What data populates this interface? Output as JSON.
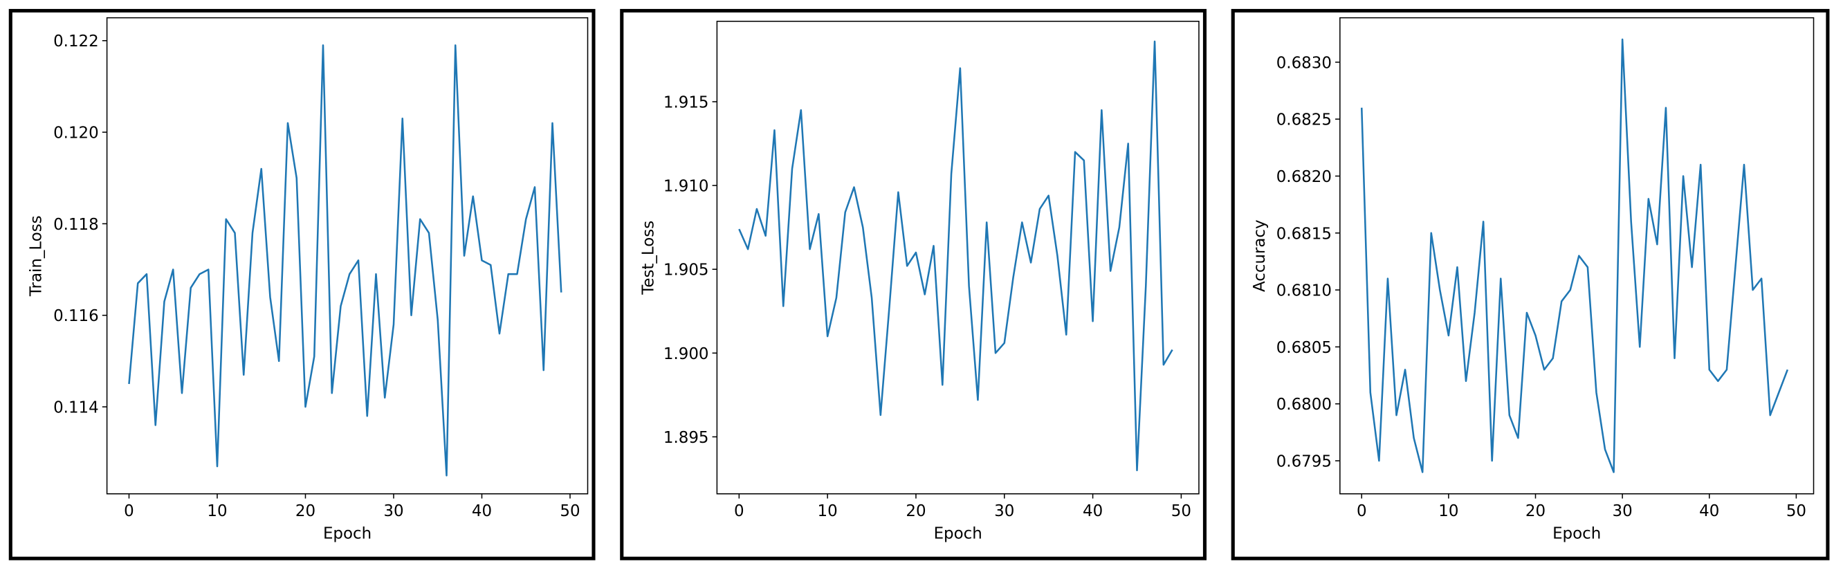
{
  "chart_data": [
    {
      "type": "line",
      "xlabel": "Epoch",
      "ylabel": "Train_Loss",
      "color": "#1f77b4",
      "x": [
        0,
        1,
        2,
        3,
        4,
        5,
        6,
        7,
        8,
        9,
        10,
        11,
        12,
        13,
        14,
        15,
        16,
        17,
        18,
        19,
        20,
        21,
        22,
        23,
        24,
        25,
        26,
        27,
        28,
        29,
        30,
        31,
        32,
        33,
        34,
        35,
        36,
        37,
        38,
        39,
        40,
        41,
        42,
        43,
        44,
        45,
        46,
        47,
        48,
        49
      ],
      "values": [
        0.1145,
        0.1167,
        0.1169,
        0.1136,
        0.1163,
        0.117,
        0.1143,
        0.1166,
        0.1169,
        0.117,
        0.1127,
        0.1181,
        0.1178,
        0.1147,
        0.1178,
        0.1192,
        0.1164,
        0.115,
        0.1202,
        0.119,
        0.114,
        0.1151,
        0.1219,
        0.1143,
        0.1162,
        0.1169,
        0.1172,
        0.1138,
        0.1169,
        0.1142,
        0.1158,
        0.1203,
        0.116,
        0.1181,
        0.1178,
        0.1159,
        0.1125,
        0.1219,
        0.1173,
        0.1186,
        0.1172,
        0.1171,
        0.1156,
        0.1169,
        0.1169,
        0.1181,
        0.1188,
        0.1148,
        0.1202,
        0.1165
      ],
      "xlim": [
        -2.5,
        52
      ],
      "xticks": [
        0,
        10,
        20,
        30,
        40,
        50
      ],
      "ylim": [
        0.1121,
        0.1225
      ],
      "yticks": [
        0.114,
        0.116,
        0.118,
        {
          "value": 0.12,
          "label": "0.120"
        },
        0.122
      ]
    },
    {
      "type": "line",
      "xlabel": "Epoch",
      "ylabel": "Test_Loss",
      "color": "#1f77b4",
      "x": [
        0,
        1,
        2,
        3,
        4,
        5,
        6,
        7,
        8,
        9,
        10,
        11,
        12,
        13,
        14,
        15,
        16,
        17,
        18,
        19,
        20,
        21,
        22,
        23,
        24,
        25,
        26,
        27,
        28,
        29,
        30,
        31,
        32,
        33,
        34,
        35,
        36,
        37,
        38,
        39,
        40,
        41,
        42,
        43,
        44,
        45,
        46,
        47,
        48,
        49
      ],
      "values": [
        1.9074,
        1.9062,
        1.9086,
        1.907,
        1.9133,
        1.9028,
        1.911,
        1.9145,
        1.9062,
        1.9083,
        1.901,
        1.9033,
        1.9084,
        1.9099,
        1.9075,
        1.9033,
        1.8963,
        1.9028,
        1.9096,
        1.9052,
        1.906,
        1.9035,
        1.9064,
        1.8981,
        1.9107,
        1.917,
        1.904,
        1.8972,
        1.9078,
        1.9,
        1.9006,
        1.9045,
        1.9078,
        1.9054,
        1.9086,
        1.9094,
        1.9058,
        1.9011,
        1.912,
        1.9115,
        1.9019,
        1.9145,
        1.9049,
        1.9075,
        1.9125,
        1.893,
        1.904,
        1.9186,
        1.8993,
        1.9002
      ],
      "xlim": [
        -2.5,
        52
      ],
      "xticks": [
        0,
        10,
        20,
        30,
        40,
        50
      ],
      "ylim": [
        1.8916,
        1.9198
      ],
      "yticks": [
        1.895,
        {
          "value": 1.9,
          "label": "1.900"
        },
        1.905,
        {
          "value": 1.91,
          "label": "1.910"
        },
        1.915
      ]
    },
    {
      "type": "line",
      "xlabel": "Epoch",
      "ylabel": "Accuracy",
      "color": "#1f77b4",
      "x": [
        0,
        1,
        2,
        3,
        4,
        5,
        6,
        7,
        8,
        9,
        10,
        11,
        12,
        13,
        14,
        15,
        16,
        17,
        18,
        19,
        20,
        21,
        22,
        23,
        24,
        25,
        26,
        27,
        28,
        29,
        30,
        31,
        32,
        33,
        34,
        35,
        36,
        37,
        38,
        39,
        40,
        41,
        42,
        43,
        44,
        45,
        46,
        47,
        48,
        49
      ],
      "values": [
        0.6826,
        0.6801,
        0.6795,
        0.6811,
        0.6799,
        0.6803,
        0.6797,
        0.6794,
        0.6815,
        0.681,
        0.6806,
        0.6812,
        0.6802,
        0.6808,
        0.6816,
        0.6795,
        0.6811,
        0.6799,
        0.6797,
        0.6808,
        0.6806,
        0.6803,
        0.6804,
        0.6809,
        0.681,
        0.6813,
        0.6812,
        0.6801,
        0.6796,
        0.6794,
        0.6832,
        0.6816,
        0.6805,
        0.6818,
        0.6814,
        0.6826,
        0.6804,
        0.682,
        0.6812,
        0.6821,
        0.6803,
        0.6802,
        0.6803,
        0.6812,
        0.6821,
        0.681,
        0.6811,
        0.6799,
        0.6801,
        0.6803
      ],
      "xlim": [
        -2.5,
        52
      ],
      "xticks": [
        0,
        10,
        20,
        30,
        40,
        50
      ],
      "ylim": [
        0.67921,
        0.68339
      ],
      "yticks": [
        0.6795,
        {
          "value": 0.68,
          "label": "0.6800"
        },
        0.6805,
        {
          "value": 0.681,
          "label": "0.6810"
        },
        0.6815,
        {
          "value": 0.682,
          "label": "0.6820"
        },
        0.6825,
        {
          "value": 0.683,
          "label": "0.6830"
        }
      ]
    }
  ]
}
